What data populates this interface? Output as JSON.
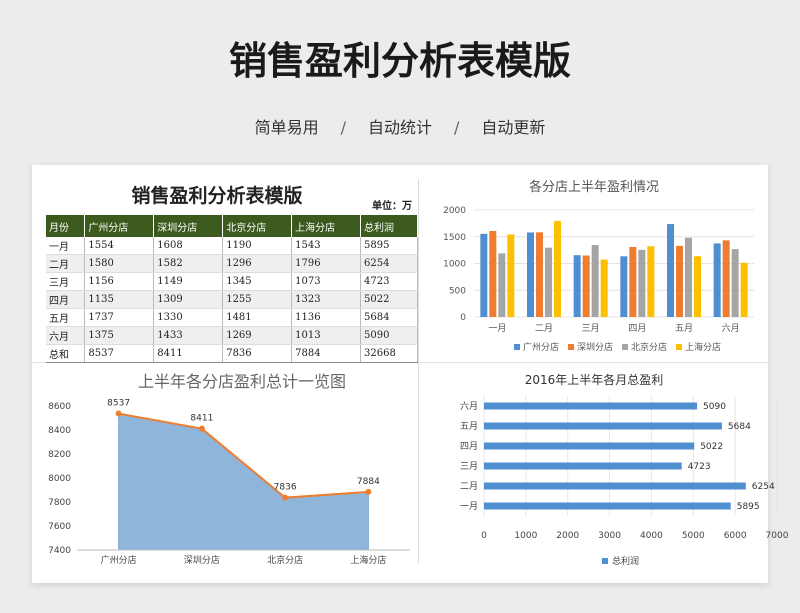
{
  "header": {
    "title": "销售盈利分析表模版",
    "subtitle": [
      "简单易用",
      "自动统计",
      "自动更新"
    ],
    "separator": "/"
  },
  "sheet": {
    "title": "销售盈利分析表模版",
    "unit": "单位：万",
    "columns": [
      "月份",
      "广州分店",
      "深圳分店",
      "北京分店",
      "上海分店",
      "总利润"
    ],
    "rows": [
      [
        "一月",
        "1554",
        "1608",
        "1190",
        "1543",
        "5895"
      ],
      [
        "二月",
        "1580",
        "1582",
        "1296",
        "1796",
        "6254"
      ],
      [
        "三月",
        "1156",
        "1149",
        "1345",
        "1073",
        "4723"
      ],
      [
        "四月",
        "1135",
        "1309",
        "1255",
        "1323",
        "5022"
      ],
      [
        "五月",
        "1737",
        "1330",
        "1481",
        "1136",
        "5684"
      ],
      [
        "六月",
        "1375",
        "1433",
        "1269",
        "1013",
        "5090"
      ],
      [
        "总和",
        "8537",
        "8411",
        "7836",
        "7884",
        "32668"
      ]
    ]
  },
  "chart_data": [
    {
      "type": "bar",
      "title": "各分店上半年盈利情况",
      "categories": [
        "一月",
        "二月",
        "三月",
        "四月",
        "五月",
        "六月"
      ],
      "series": [
        {
          "name": "广州分店",
          "values": [
            1554,
            1580,
            1156,
            1135,
            1737,
            1375
          ],
          "color": "#4f8fd1"
        },
        {
          "name": "深圳分店",
          "values": [
            1608,
            1582,
            1149,
            1309,
            1330,
            1433
          ],
          "color": "#ee7d31"
        },
        {
          "name": "北京分店",
          "values": [
            1190,
            1296,
            1345,
            1255,
            1481,
            1269
          ],
          "color": "#a5a5a5"
        },
        {
          "name": "上海分店",
          "values": [
            1543,
            1796,
            1073,
            1323,
            1136,
            1013
          ],
          "color": "#fcc000"
        }
      ],
      "ylim": [
        0,
        2000
      ],
      "yticks": [
        0,
        500,
        1000,
        1500,
        2000
      ],
      "legend": "bottom"
    },
    {
      "type": "area",
      "title": "上半年各分店盈利总计一览图",
      "categories": [
        "广州分店",
        "深圳分店",
        "北京分店",
        "上海分店"
      ],
      "values": [
        8537,
        8411,
        7836,
        7884
      ],
      "ylim": [
        7400,
        8600
      ],
      "yticks": [
        7400,
        7600,
        7800,
        8000,
        8200,
        8400,
        8600
      ],
      "fill": "#8fb5db",
      "line": "#ee7d31"
    },
    {
      "type": "bar",
      "orientation": "horizontal",
      "title": "2016年上半年各月总盈利",
      "categories": [
        "一月",
        "二月",
        "三月",
        "四月",
        "五月",
        "六月"
      ],
      "values": [
        5895,
        6254,
        4723,
        5022,
        5684,
        5090
      ],
      "series_name": "总利润",
      "xlim": [
        0,
        7000
      ],
      "xticks": [
        0,
        1000,
        2000,
        3000,
        4000,
        5000,
        6000,
        7000
      ],
      "color": "#4f8fd1",
      "legend": "bottom"
    }
  ]
}
